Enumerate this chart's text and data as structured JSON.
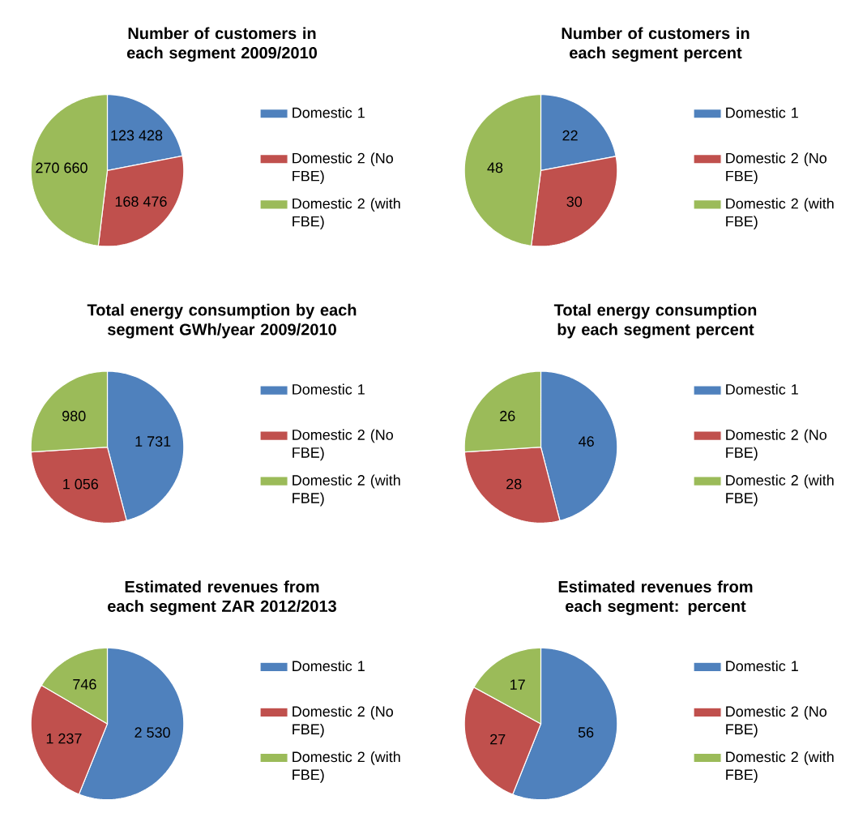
{
  "chart_data": [
    {
      "type": "pie",
      "title": "Number of customers in each segment 2009/2010",
      "categories": [
        "Domestic 1",
        "Domestic 2 (No FBE)",
        "Domestic 2 (with FBE)"
      ],
      "values": [
        123428,
        168476,
        270660
      ],
      "value_labels": [
        "123 428",
        "168 476",
        "270 660"
      ],
      "colors": [
        "#4f81bd",
        "#c0504d",
        "#9bbb59"
      ],
      "legend": "right"
    },
    {
      "type": "pie",
      "title": "Number of customers in each segment percent",
      "categories": [
        "Domestic 1",
        "Domestic 2 (No FBE)",
        "Domestic 2 (with FBE)"
      ],
      "values": [
        22,
        30,
        48
      ],
      "data_labels": true,
      "colors": [
        "#4f81bd",
        "#c0504d",
        "#9bbb59"
      ],
      "legend": "right"
    },
    {
      "type": "pie",
      "title": "Total energy consumption by each segment GWh/year 2009/2010",
      "categories": [
        "Domestic 1",
        "Domestic 2 (No FBE)",
        "Domestic 2 (with FBE)"
      ],
      "values": [
        1731,
        1056,
        980
      ],
      "value_labels": [
        "1 731",
        "1 056",
        "980"
      ],
      "colors": [
        "#4f81bd",
        "#c0504d",
        "#9bbb59"
      ],
      "legend": "right"
    },
    {
      "type": "pie",
      "title": "Total energy consumption by each segment percent",
      "categories": [
        "Domestic 1",
        "Domestic 2 (No FBE)",
        "Domestic 2 (with FBE)"
      ],
      "values": [
        46,
        28,
        26
      ],
      "data_labels": true,
      "colors": [
        "#4f81bd",
        "#c0504d",
        "#9bbb59"
      ],
      "legend": "right"
    },
    {
      "type": "pie",
      "title": "Estimated revenues from each segment ZAR 2012/2013",
      "categories": [
        "Domestic 1",
        "Domestic 2 (No FBE)",
        "Domestic 2 (with FBE)"
      ],
      "values": [
        2530,
        1237,
        746
      ],
      "value_labels": [
        "2 530",
        "1 237",
        "746"
      ],
      "colors": [
        "#4f81bd",
        "#c0504d",
        "#9bbb59"
      ],
      "legend": "right"
    },
    {
      "type": "pie",
      "title": "Estimated revenues from each segment: percent",
      "categories": [
        "Domestic 1",
        "Domestic 2 (No FBE)",
        "Domestic 2 (with FBE)"
      ],
      "values": [
        56,
        27,
        17
      ],
      "data_labels": true,
      "colors": [
        "#4f81bd",
        "#c0504d",
        "#9bbb59"
      ],
      "legend": "right"
    }
  ]
}
